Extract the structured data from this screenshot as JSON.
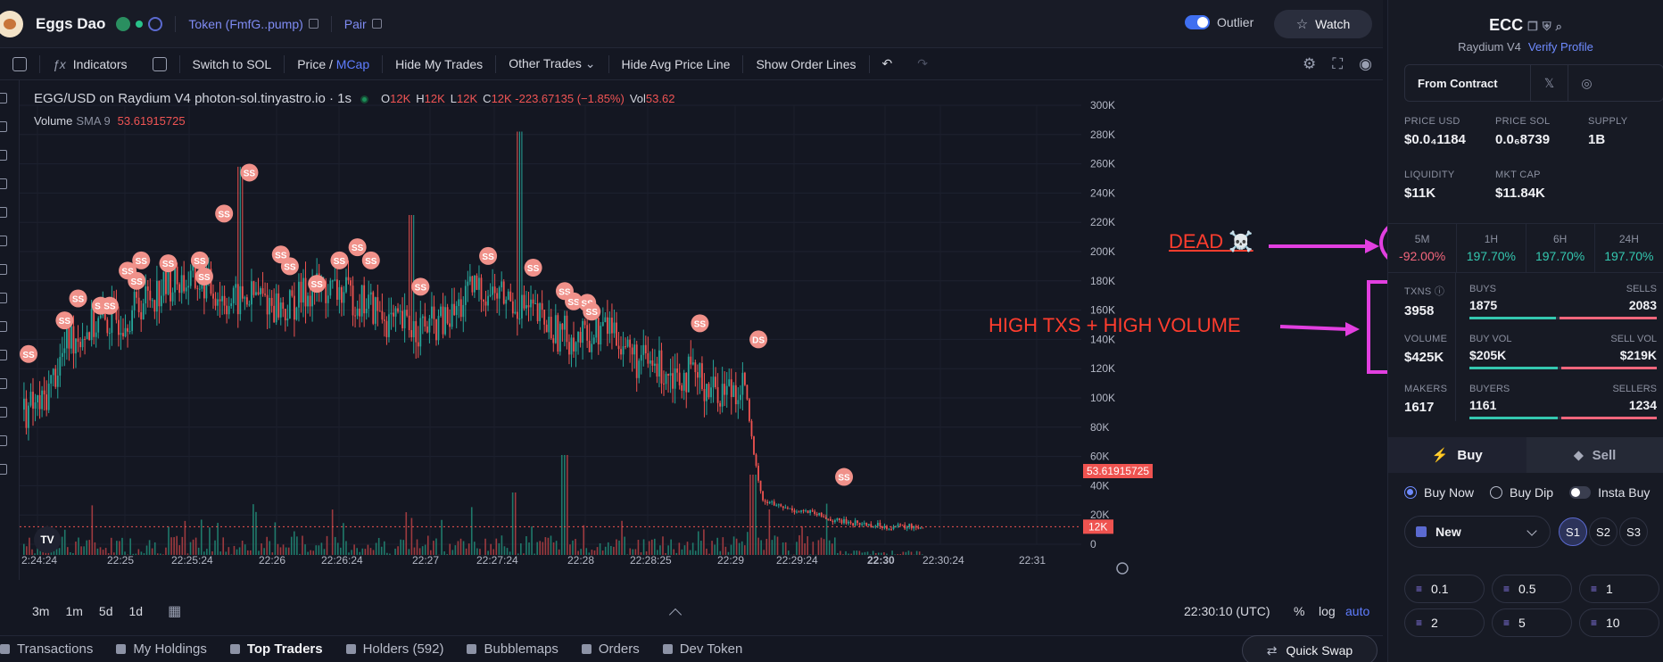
{
  "header": {
    "token_name": "Eggs Dao",
    "token_link": "Token (FmfG..pump)",
    "pair_link": "Pair",
    "outlier_label": "Outlier",
    "watch_label": "Watch"
  },
  "toolbar": {
    "indicators": "Indicators",
    "switch_sol": "Switch to SOL",
    "price": "Price /",
    "mcap": "MCap",
    "hide_trades": "Hide My Trades",
    "other_trades": "Other Trades",
    "hide_avg": "Hide Avg Price Line",
    "show_orders": "Show Order Lines"
  },
  "chart": {
    "title": "EGG/USD on Raydium V4 photon-sol.tinyastro.io · 1s",
    "ohlc": [
      {
        "k": "O",
        "v": "12K"
      },
      {
        "k": "H",
        "v": "12K"
      },
      {
        "k": "L",
        "v": "12K"
      },
      {
        "k": "C",
        "v": "12K -223.67135 (−1.85%)"
      },
      {
        "k": "Vol",
        "v": "53.62"
      }
    ],
    "volume_label": "Volume",
    "sma_label": "SMA 9",
    "sma_value": "53.61915725",
    "price_badge": "12K",
    "volume_badge": "53.61915725",
    "tv_logo": "TV",
    "timeframes": [
      "3m",
      "1m",
      "5d",
      "1d"
    ],
    "utc_time": "22:30:10 (UTC)",
    "pct": "%",
    "log": "log",
    "auto": "auto"
  },
  "chart_data": {
    "type": "candlestick",
    "y_axis_labels": [
      "300K",
      "280K",
      "260K",
      "240K",
      "220K",
      "200K",
      "180K",
      "160K",
      "140K",
      "120K",
      "100K",
      "80K",
      "60K",
      "40K",
      "20K",
      "0"
    ],
    "x_axis_labels": [
      "2:24:24",
      "22:25",
      "22:25:24",
      "22:26",
      "22:26:24",
      "22:27",
      "22:27:24",
      "22:28",
      "22:28:25",
      "22:29",
      "22:29:24",
      "22:30",
      "22:30:24",
      "22:31"
    ],
    "ylim": [
      0,
      300000
    ],
    "price_path": [
      [
        0.0,
        92000
      ],
      [
        0.02,
        95000
      ],
      [
        0.05,
        140000
      ],
      [
        0.08,
        150000
      ],
      [
        0.11,
        155000
      ],
      [
        0.14,
        170000
      ],
      [
        0.17,
        180000
      ],
      [
        0.2,
        178000
      ],
      [
        0.23,
        165000
      ],
      [
        0.26,
        170000
      ],
      [
        0.29,
        160000
      ],
      [
        0.32,
        175000
      ],
      [
        0.35,
        172000
      ],
      [
        0.38,
        165000
      ],
      [
        0.41,
        150000
      ],
      [
        0.44,
        148000
      ],
      [
        0.47,
        152000
      ],
      [
        0.5,
        175000
      ],
      [
        0.53,
        170000
      ],
      [
        0.56,
        160000
      ],
      [
        0.59,
        145000
      ],
      [
        0.62,
        140000
      ],
      [
        0.65,
        150000
      ],
      [
        0.68,
        125000
      ],
      [
        0.71,
        120000
      ],
      [
        0.74,
        115000
      ],
      [
        0.77,
        105000
      ],
      [
        0.8,
        110000
      ],
      [
        0.81,
        60000
      ],
      [
        0.82,
        30000
      ],
      [
        0.84,
        25000
      ],
      [
        0.87,
        22000
      ],
      [
        0.9,
        16000
      ],
      [
        0.93,
        14000
      ],
      [
        0.96,
        12000
      ],
      [
        1.0,
        12000
      ]
    ],
    "markers": [
      {
        "label": "SS",
        "x": 0.0,
        "y": 130000
      },
      {
        "label": "SS",
        "x": 0.04,
        "y": 153000
      },
      {
        "label": "SS",
        "x": 0.055,
        "y": 168000
      },
      {
        "label": "SS",
        "x": 0.08,
        "y": 163000
      },
      {
        "label": "SS",
        "x": 0.09,
        "y": 163000
      },
      {
        "label": "SS",
        "x": 0.11,
        "y": 187000
      },
      {
        "label": "SS",
        "x": 0.12,
        "y": 180000
      },
      {
        "label": "SS",
        "x": 0.125,
        "y": 194000
      },
      {
        "label": "SS",
        "x": 0.155,
        "y": 192000
      },
      {
        "label": "SS",
        "x": 0.19,
        "y": 194000
      },
      {
        "label": "SS",
        "x": 0.195,
        "y": 183000
      },
      {
        "label": "SS",
        "x": 0.217,
        "y": 226000
      },
      {
        "label": "SS",
        "x": 0.245,
        "y": 254000
      },
      {
        "label": "SS",
        "x": 0.28,
        "y": 198000
      },
      {
        "label": "SS",
        "x": 0.29,
        "y": 190000
      },
      {
        "label": "SS",
        "x": 0.32,
        "y": 178000
      },
      {
        "label": "SS",
        "x": 0.345,
        "y": 194000
      },
      {
        "label": "SS",
        "x": 0.365,
        "y": 203000
      },
      {
        "label": "SS",
        "x": 0.38,
        "y": 194000
      },
      {
        "label": "SS",
        "x": 0.435,
        "y": 176000
      },
      {
        "label": "SS",
        "x": 0.51,
        "y": 197000
      },
      {
        "label": "SS",
        "x": 0.56,
        "y": 189000
      },
      {
        "label": "SS",
        "x": 0.595,
        "y": 173000
      },
      {
        "label": "SS",
        "x": 0.605,
        "y": 166000
      },
      {
        "label": "SS",
        "x": 0.62,
        "y": 165000
      },
      {
        "label": "SS",
        "x": 0.625,
        "y": 159000
      },
      {
        "label": "SS",
        "x": 0.745,
        "y": 151000
      },
      {
        "label": "DS",
        "x": 0.81,
        "y": 140000
      },
      {
        "label": "SS",
        "x": 0.905,
        "y": 46000
      }
    ]
  },
  "annotations": {
    "dead": "DEAD ☠️",
    "high": "HIGH TXS + HIGH VOLUME"
  },
  "tabs": [
    {
      "label": "Transactions",
      "active": false
    },
    {
      "label": "My Holdings",
      "active": false
    },
    {
      "label": "Top Traders",
      "active": true
    },
    {
      "label": "Holders (592)",
      "active": false
    },
    {
      "label": "Bubblemaps",
      "active": false
    },
    {
      "label": "Orders",
      "active": false
    },
    {
      "label": "Dev Token",
      "active": false
    }
  ],
  "quick_swap": "Quick Swap",
  "panel": {
    "symbol": "ECC",
    "dex": "Raydium V4",
    "verify": "Verify Profile",
    "from_contract": "From Contract",
    "x_icon": "𝕏",
    "stats": {
      "price_usd": {
        "label": "PRICE USD",
        "value": "$0.0₄1184"
      },
      "price_sol": {
        "label": "PRICE SOL",
        "value": "0.0₆8739"
      },
      "supply": {
        "label": "SUPPLY",
        "value": "1B"
      },
      "liquidity": {
        "label": "LIQUIDITY",
        "value": "$11K"
      },
      "mkt_cap": {
        "label": "MKT CAP",
        "value": "$11.84K"
      }
    },
    "periods": [
      {
        "label": "5M",
        "value": "-92.00%"
      },
      {
        "label": "1H",
        "value": "197.70%"
      },
      {
        "label": "6H",
        "value": "197.70%"
      },
      {
        "label": "24H",
        "value": "197.70%"
      }
    ],
    "txns": {
      "label": "TXNS",
      "value": "3958"
    },
    "volume": {
      "label": "VOLUME",
      "value": "$425K"
    },
    "makers": {
      "label": "MAKERS",
      "value": "1617"
    },
    "buys": {
      "label": "BUYS",
      "value": "1875"
    },
    "sells": {
      "label": "SELLS",
      "value": "2083"
    },
    "buy_vol": {
      "label": "BUY VOL",
      "value": "$205K"
    },
    "sell_vol": {
      "label": "SELL VOL",
      "value": "$219K"
    },
    "buyers": {
      "label": "BUYERS",
      "value": "1161"
    },
    "sellers": {
      "label": "SELLERS",
      "value": "1234"
    },
    "buy_share": 0.47,
    "buyvol_share": 0.48,
    "buyers_share": 0.48,
    "buy_tab": "Buy",
    "sell_tab": "Sell",
    "buy_now": "Buy Now",
    "buy_dip": "Buy Dip",
    "insta_buy": "Insta Buy",
    "preset": "New",
    "s_buttons": [
      "S1",
      "S2",
      "S3"
    ],
    "amounts": [
      "0.1",
      "0.5",
      "1",
      "2",
      "5",
      "10"
    ]
  }
}
